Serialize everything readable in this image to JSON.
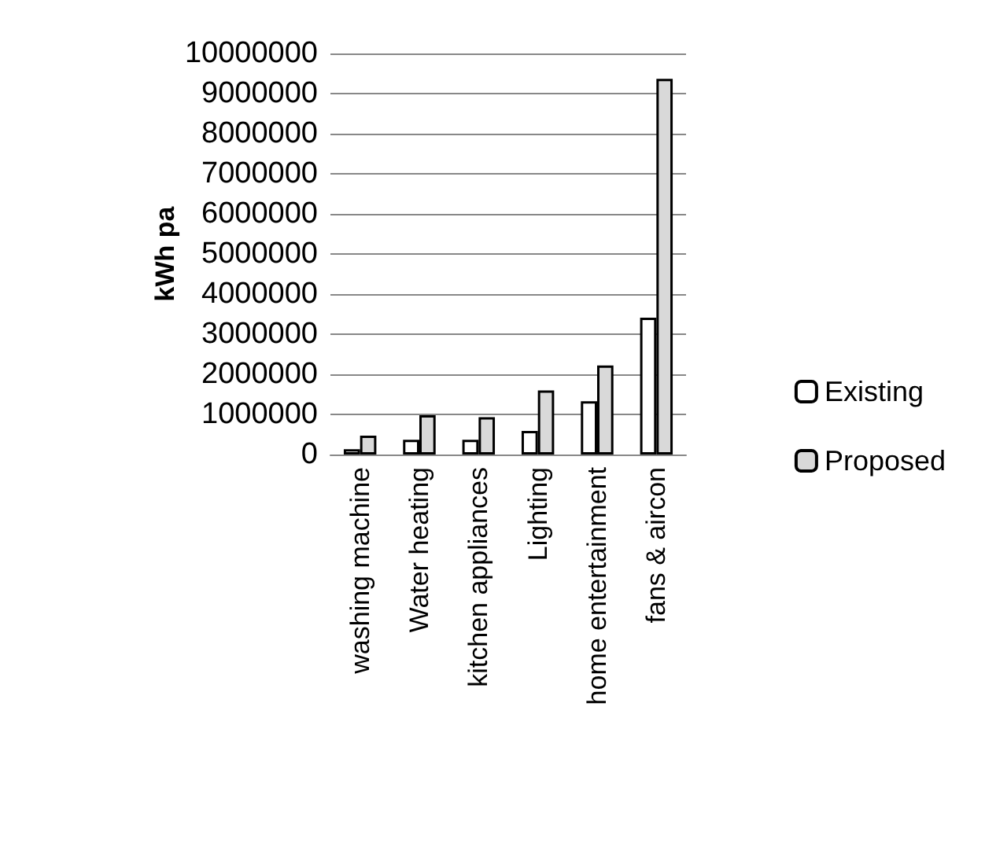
{
  "chart_data": {
    "type": "bar",
    "ylabel": "kWh pa",
    "categories": [
      "washing machine",
      "Water heating",
      "kitchen appliances",
      "Lighting",
      "home entertainment",
      "fans & aircon"
    ],
    "series": [
      {
        "name": "Existing",
        "color": "#ffffff",
        "values": [
          130000,
          370000,
          370000,
          590000,
          1330000,
          3410000
        ]
      },
      {
        "name": "Proposed",
        "color": "#d9d9d9",
        "values": [
          470000,
          980000,
          930000,
          1600000,
          2220000,
          9370000
        ]
      }
    ],
    "ylim": [
      0,
      10000000
    ],
    "yticks": [
      0,
      1000000,
      2000000,
      3000000,
      4000000,
      5000000,
      6000000,
      7000000,
      8000000,
      9000000,
      10000000
    ],
    "grid": "y",
    "legend": "right"
  }
}
